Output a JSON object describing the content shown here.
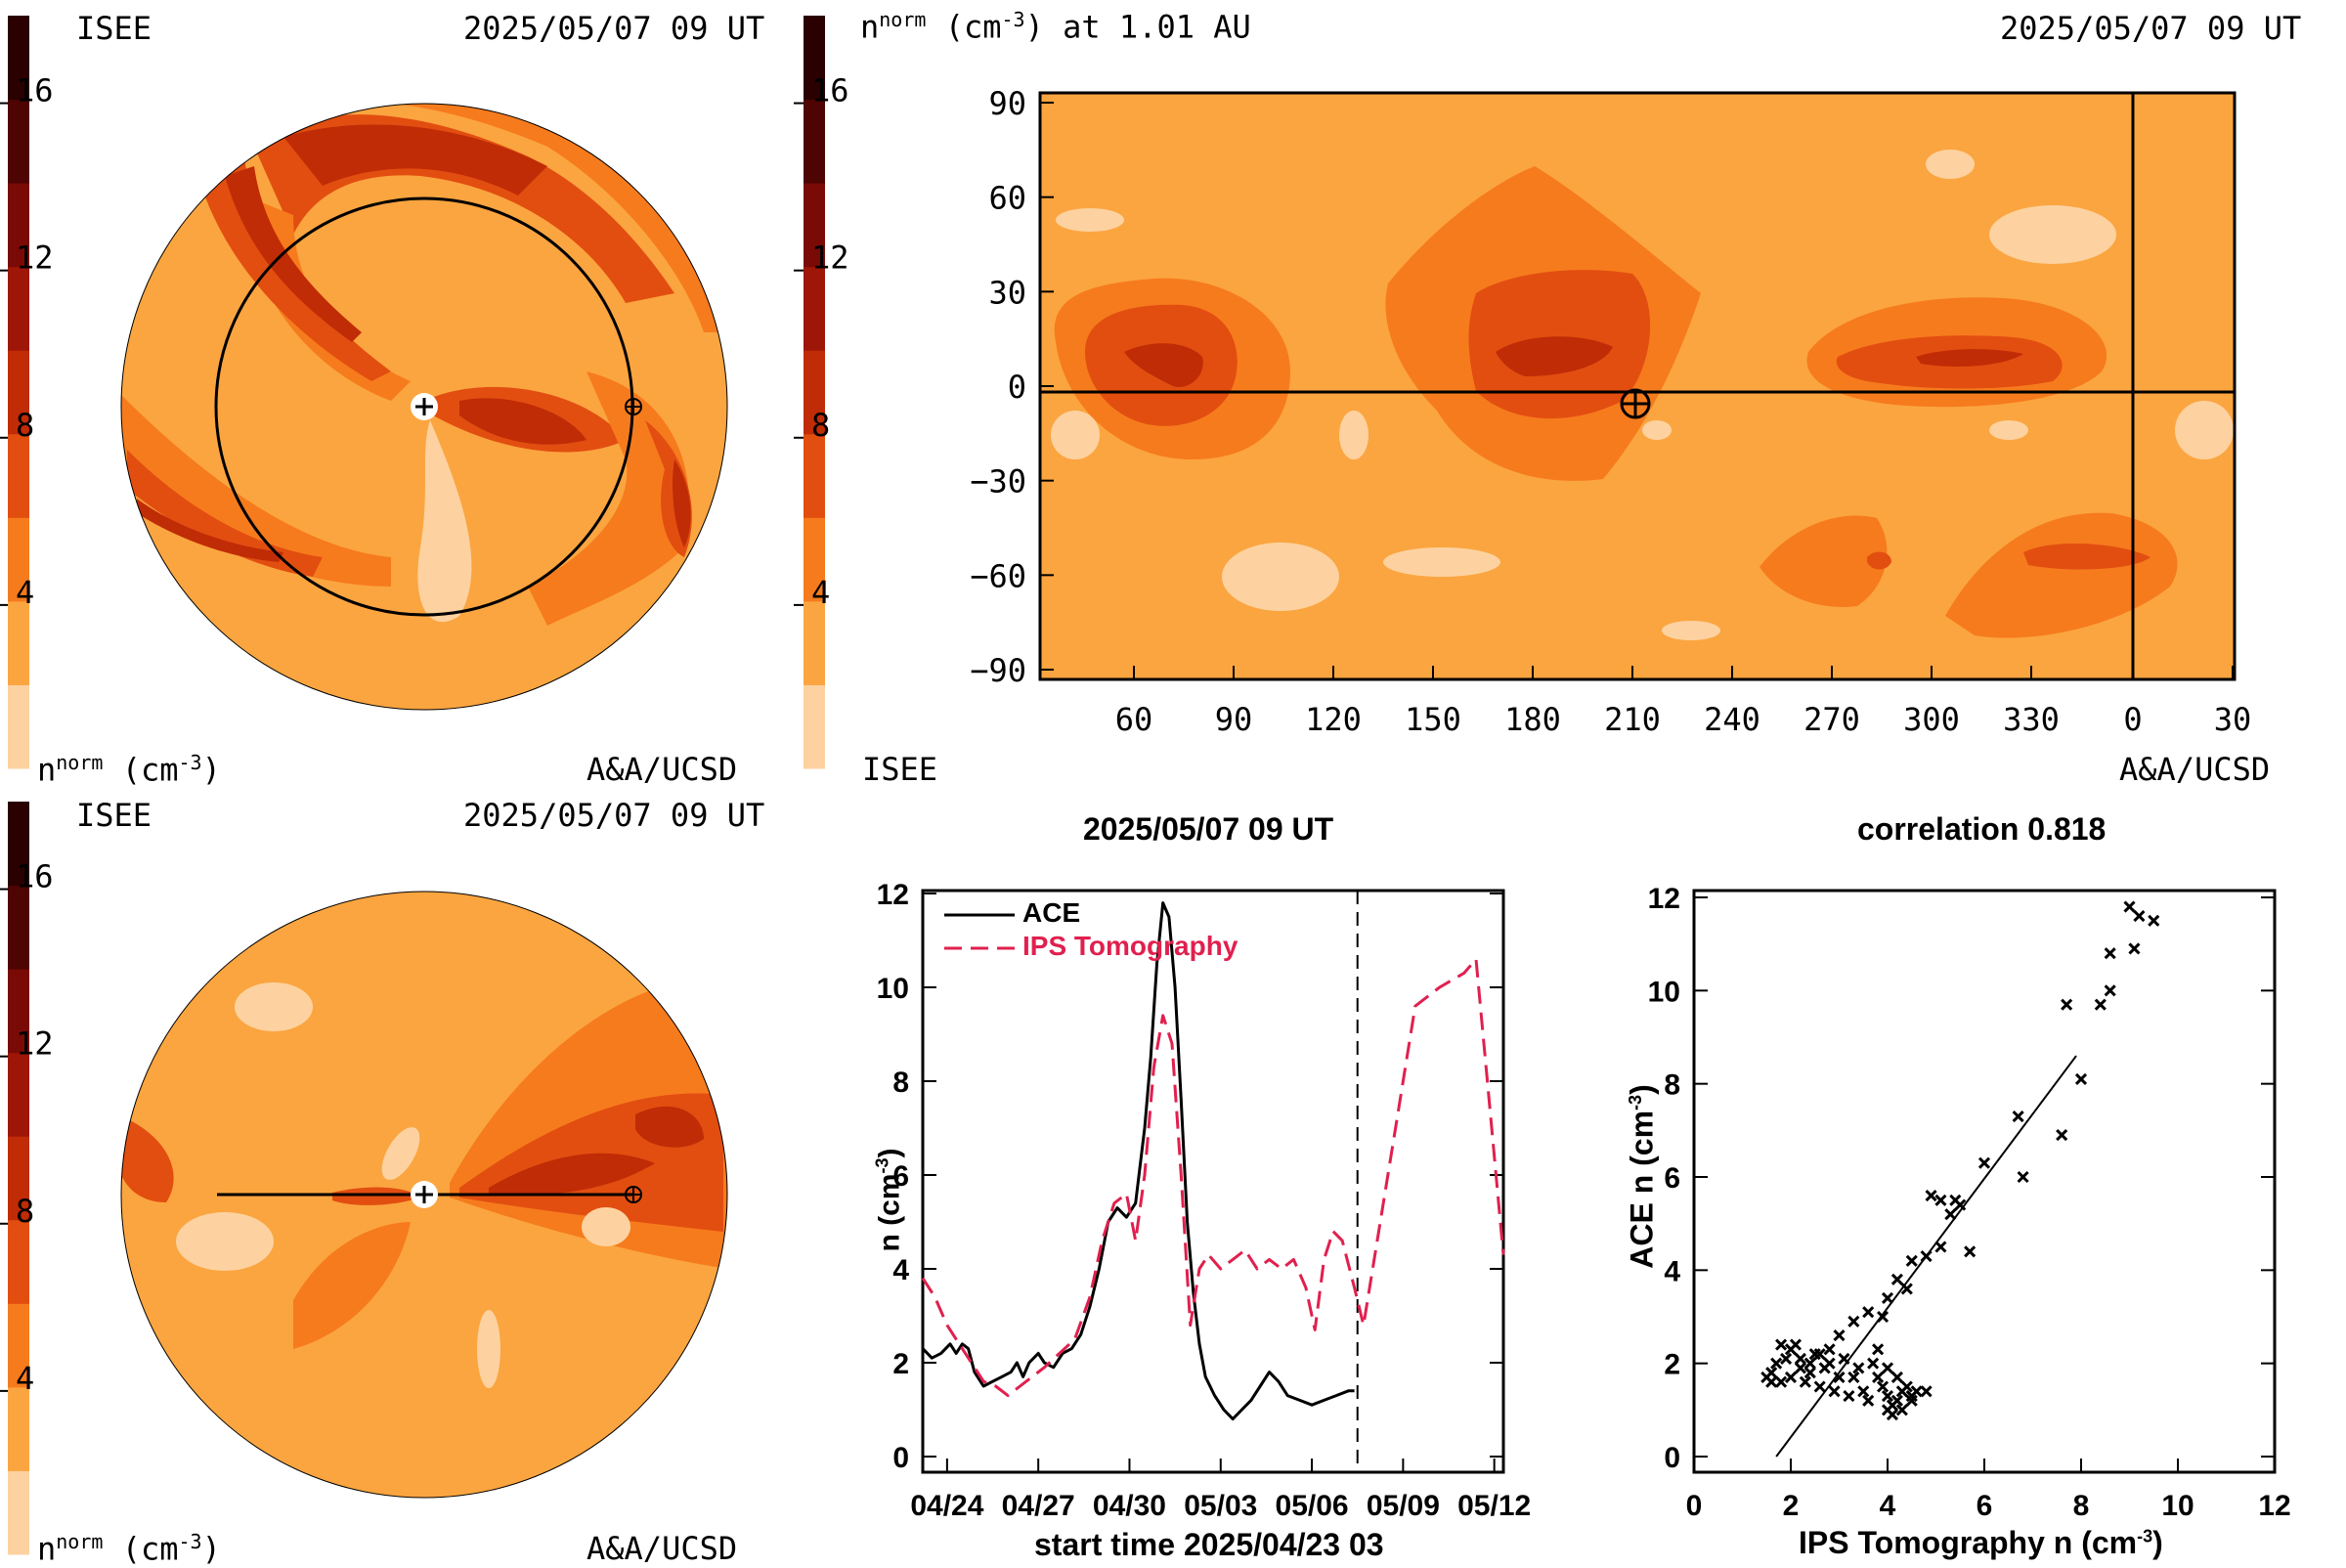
{
  "colors": {
    "bg_orange": "#FBA540",
    "level_colors": [
      "#FDD2A0",
      "#FBA540",
      "#F67B1D",
      "#E24E10",
      "#C02C06",
      "#9E1607",
      "#7A0A05",
      "#4E0402",
      "#2A0000"
    ],
    "line_red": "#E0204E"
  },
  "colorbar": {
    "ticks": [
      "4",
      "8",
      "12",
      "16"
    ],
    "unit_label": "n<sup>norm</sup> (cm<sup>-3</sup>)"
  },
  "panel_top_left": {
    "org_left": "ISEE",
    "timestamp": "2025/05/07 09 UT",
    "unit": "n",
    "unit_sup": "norm",
    "unit_rest": "(cm",
    "unit_exp": "-3",
    "unit_close": ")",
    "credit": "A&A/UCSD"
  },
  "panel_bottom_left": {
    "org_left": "ISEE",
    "timestamp": "2025/05/07 09 UT",
    "unit": "n",
    "unit_sup": "norm",
    "unit_rest": "(cm",
    "unit_exp": "-3",
    "unit_close": ")",
    "credit": "A&A/UCSD"
  },
  "panel_map": {
    "title_n": "n",
    "title_sup": "norm",
    "title_rest": "(cm",
    "title_exp": "-3",
    "title_tail": ") at 1.01 AU",
    "timestamp": "2025/05/07 09 UT",
    "org": "ISEE",
    "credit": "A&A/UCSD",
    "x_ticks": [
      "60",
      "90",
      "120",
      "150",
      "180",
      "210",
      "240",
      "270",
      "300",
      "330",
      "0",
      "30"
    ],
    "y_ticks": [
      "90",
      "60",
      "30",
      "0",
      "−30",
      "−60",
      "−90"
    ]
  },
  "chart_data": [
    {
      "type": "line",
      "title": "2025/05/07 09 UT",
      "xlabel": "start time 2025/04/23 03",
      "ylabel": "n (cm",
      "ylabel_exp": "-3",
      "ylabel_close": ")",
      "x_tick_labels": [
        "04/24",
        "04/27",
        "04/30",
        "05/03",
        "05/06",
        "05/09",
        "05/12"
      ],
      "y_ticks": [
        "0",
        "2",
        "4",
        "6",
        "8",
        "10",
        "12"
      ],
      "ylim": [
        0,
        12
      ],
      "xlim_days": [
        0,
        19.1
      ],
      "series": [
        {
          "name": "ACE",
          "style": "solid",
          "points": [
            [
              0.0,
              2.3
            ],
            [
              0.3,
              2.1
            ],
            [
              0.6,
              2.2
            ],
            [
              0.9,
              2.4
            ],
            [
              1.1,
              2.2
            ],
            [
              1.3,
              2.4
            ],
            [
              1.5,
              2.3
            ],
            [
              1.7,
              1.8
            ],
            [
              2.0,
              1.5
            ],
            [
              2.3,
              1.6
            ],
            [
              2.6,
              1.7
            ],
            [
              2.9,
              1.8
            ],
            [
              3.1,
              2.0
            ],
            [
              3.3,
              1.7
            ],
            [
              3.5,
              2.0
            ],
            [
              3.8,
              2.2
            ],
            [
              4.0,
              2.0
            ],
            [
              4.3,
              1.9
            ],
            [
              4.6,
              2.2
            ],
            [
              4.9,
              2.3
            ],
            [
              5.2,
              2.6
            ],
            [
              5.5,
              3.2
            ],
            [
              5.8,
              4.0
            ],
            [
              6.1,
              5.0
            ],
            [
              6.4,
              5.3
            ],
            [
              6.7,
              5.1
            ],
            [
              7.0,
              5.4
            ],
            [
              7.3,
              7.0
            ],
            [
              7.5,
              8.5
            ],
            [
              7.7,
              10.5
            ],
            [
              7.9,
              11.8
            ],
            [
              8.1,
              11.5
            ],
            [
              8.3,
              10.0
            ],
            [
              8.5,
              7.6
            ],
            [
              8.7,
              5.0
            ],
            [
              8.9,
              3.5
            ],
            [
              9.1,
              2.4
            ],
            [
              9.3,
              1.7
            ],
            [
              9.6,
              1.3
            ],
            [
              9.9,
              1.0
            ],
            [
              10.2,
              0.8
            ],
            [
              10.5,
              1.0
            ],
            [
              10.8,
              1.2
            ],
            [
              11.1,
              1.5
            ],
            [
              11.4,
              1.8
            ],
            [
              11.7,
              1.6
            ],
            [
              12.0,
              1.3
            ],
            [
              12.4,
              1.2
            ],
            [
              12.8,
              1.1
            ],
            [
              13.2,
              1.2
            ],
            [
              13.6,
              1.3
            ],
            [
              14.0,
              1.4
            ],
            [
              14.2,
              1.4
            ]
          ]
        },
        {
          "name": "IPS Tomography",
          "style": "dashed",
          "points": [
            [
              0.0,
              3.8
            ],
            [
              0.4,
              3.4
            ],
            [
              0.8,
              2.8
            ],
            [
              1.2,
              2.4
            ],
            [
              1.6,
              2.0
            ],
            [
              2.0,
              1.6
            ],
            [
              2.4,
              1.5
            ],
            [
              2.8,
              1.3
            ],
            [
              3.2,
              1.5
            ],
            [
              3.6,
              1.7
            ],
            [
              4.0,
              1.9
            ],
            [
              4.5,
              2.2
            ],
            [
              5.0,
              2.5
            ],
            [
              5.5,
              3.4
            ],
            [
              5.9,
              4.6
            ],
            [
              6.3,
              5.4
            ],
            [
              6.7,
              5.6
            ],
            [
              7.0,
              4.6
            ],
            [
              7.3,
              6.0
            ],
            [
              7.6,
              8.3
            ],
            [
              7.9,
              9.4
            ],
            [
              8.2,
              8.8
            ],
            [
              8.5,
              6.0
            ],
            [
              8.8,
              2.8
            ],
            [
              9.1,
              4.0
            ],
            [
              9.4,
              4.3
            ],
            [
              9.8,
              4.0
            ],
            [
              10.2,
              4.2
            ],
            [
              10.6,
              4.4
            ],
            [
              11.0,
              4.0
            ],
            [
              11.4,
              4.2
            ],
            [
              11.8,
              4.0
            ],
            [
              12.2,
              4.2
            ],
            [
              12.6,
              3.6
            ],
            [
              12.9,
              2.7
            ],
            [
              13.2,
              4.2
            ],
            [
              13.5,
              4.8
            ],
            [
              13.8,
              4.6
            ],
            [
              14.2,
              3.6
            ],
            [
              14.5,
              2.8
            ],
            [
              15.0,
              4.8
            ],
            [
              15.6,
              7.2
            ],
            [
              16.2,
              9.6
            ],
            [
              17.0,
              10.0
            ],
            [
              17.8,
              10.3
            ],
            [
              18.2,
              10.6
            ],
            [
              18.6,
              7.8
            ],
            [
              19.1,
              4.3
            ]
          ]
        }
      ],
      "vline_day": 14.3
    },
    {
      "type": "scatter",
      "title": "correlation 0.818",
      "xlabel": "IPS Tomography n (cm",
      "xlabel_exp": "-3",
      "xlabel_close": ")",
      "ylabel": "ACE n (cm",
      "ylabel_exp": "-3",
      "ylabel_close": ")",
      "x_ticks": [
        "0",
        "2",
        "4",
        "6",
        "8",
        "10",
        "12"
      ],
      "y_ticks": [
        "0",
        "2",
        "4",
        "6",
        "8",
        "10",
        "12"
      ],
      "xlim": [
        0,
        12
      ],
      "ylim": [
        0,
        12
      ],
      "fit_line": [
        [
          1.7,
          0.0
        ],
        [
          7.9,
          8.6
        ]
      ],
      "points": [
        [
          9.0,
          11.8
        ],
        [
          9.2,
          11.6
        ],
        [
          9.5,
          11.5
        ],
        [
          9.1,
          10.9
        ],
        [
          8.6,
          10.8
        ],
        [
          8.6,
          10.0
        ],
        [
          8.4,
          9.7
        ],
        [
          7.7,
          9.7
        ],
        [
          8.0,
          8.1
        ],
        [
          6.7,
          7.3
        ],
        [
          7.6,
          6.9
        ],
        [
          6.8,
          6.0
        ],
        [
          6.0,
          6.3
        ],
        [
          5.5,
          5.4
        ],
        [
          5.4,
          5.5
        ],
        [
          5.3,
          5.2
        ],
        [
          4.9,
          5.6
        ],
        [
          5.1,
          5.5
        ],
        [
          5.7,
          4.4
        ],
        [
          5.1,
          4.5
        ],
        [
          4.8,
          4.3
        ],
        [
          4.5,
          4.2
        ],
        [
          4.4,
          3.6
        ],
        [
          4.2,
          3.8
        ],
        [
          4.0,
          3.4
        ],
        [
          3.9,
          3.0
        ],
        [
          3.6,
          3.1
        ],
        [
          3.3,
          2.9
        ],
        [
          3.0,
          2.6
        ],
        [
          2.8,
          2.3
        ],
        [
          2.6,
          2.2
        ],
        [
          2.4,
          2.0
        ],
        [
          2.2,
          2.1
        ],
        [
          2.0,
          2.3
        ],
        [
          1.8,
          2.4
        ],
        [
          1.6,
          1.8
        ],
        [
          1.7,
          2.0
        ],
        [
          1.8,
          1.6
        ],
        [
          1.5,
          1.7
        ],
        [
          1.6,
          1.6
        ],
        [
          2.0,
          1.7
        ],
        [
          2.2,
          1.9
        ],
        [
          2.4,
          1.8
        ],
        [
          2.5,
          2.2
        ],
        [
          2.7,
          1.9
        ],
        [
          3.0,
          1.7
        ],
        [
          3.2,
          1.3
        ],
        [
          3.5,
          1.4
        ],
        [
          3.6,
          1.2
        ],
        [
          3.4,
          1.9
        ],
        [
          3.7,
          2.0
        ],
        [
          3.8,
          1.7
        ],
        [
          3.9,
          1.5
        ],
        [
          4.0,
          1.3
        ],
        [
          4.1,
          1.1
        ],
        [
          4.1,
          0.9
        ],
        [
          4.2,
          1.2
        ],
        [
          4.3,
          1.4
        ],
        [
          4.2,
          1.7
        ],
        [
          4.4,
          1.5
        ],
        [
          4.5,
          1.3
        ],
        [
          4.6,
          1.4
        ],
        [
          4.8,
          1.4
        ],
        [
          4.0,
          1.9
        ],
        [
          3.8,
          2.3
        ],
        [
          3.3,
          1.7
        ],
        [
          2.9,
          1.4
        ],
        [
          2.6,
          1.5
        ],
        [
          2.8,
          2.0
        ],
        [
          2.1,
          2.4
        ],
        [
          1.9,
          2.1
        ],
        [
          2.3,
          1.6
        ],
        [
          4.3,
          1.0
        ],
        [
          4.0,
          1.0
        ],
        [
          4.5,
          1.2
        ],
        [
          3.1,
          2.1
        ]
      ]
    }
  ]
}
